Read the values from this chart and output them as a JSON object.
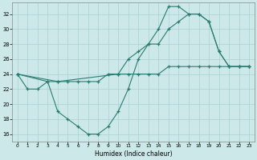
{
  "xlabel": "Humidex (Indice chaleur)",
  "bg_color": "#cce8e8",
  "line_color": "#2a7d6e",
  "grid_color": "#aad0d0",
  "xlim": [
    -0.5,
    23.5
  ],
  "ylim": [
    15,
    33.5
  ],
  "xticks": [
    0,
    1,
    2,
    3,
    4,
    5,
    6,
    7,
    8,
    9,
    10,
    11,
    12,
    13,
    14,
    15,
    16,
    17,
    18,
    19,
    20,
    21,
    22,
    23
  ],
  "yticks": [
    16,
    18,
    20,
    22,
    24,
    26,
    28,
    30,
    32
  ],
  "line1_x": [
    0,
    1,
    2,
    3,
    4,
    5,
    6,
    7,
    8,
    9,
    10,
    11,
    12,
    13,
    14,
    15,
    16,
    17,
    18,
    19,
    20,
    21,
    22,
    23
  ],
  "line1_y": [
    24,
    22,
    22,
    23,
    23,
    23,
    23,
    23,
    23,
    24,
    24,
    24,
    24,
    24,
    24,
    25,
    25,
    25,
    25,
    25,
    25,
    25,
    25,
    25
  ],
  "line2_x": [
    0,
    3,
    4,
    5,
    6,
    7,
    8,
    9,
    10,
    11,
    12,
    13,
    14,
    15,
    16,
    17,
    18,
    19,
    20,
    21,
    22,
    23
  ],
  "line2_y": [
    24,
    23,
    19,
    18,
    17,
    16,
    16,
    17,
    19,
    22,
    26,
    28,
    28,
    30,
    31,
    32,
    32,
    31,
    27,
    25,
    25,
    25
  ],
  "line3_x": [
    0,
    4,
    10,
    11,
    12,
    13,
    14,
    15,
    16,
    17,
    18,
    19,
    20,
    21,
    22,
    23
  ],
  "line3_y": [
    24,
    23,
    24,
    26,
    27,
    28,
    30,
    33,
    33,
    32,
    32,
    31,
    27,
    25,
    25,
    25
  ]
}
